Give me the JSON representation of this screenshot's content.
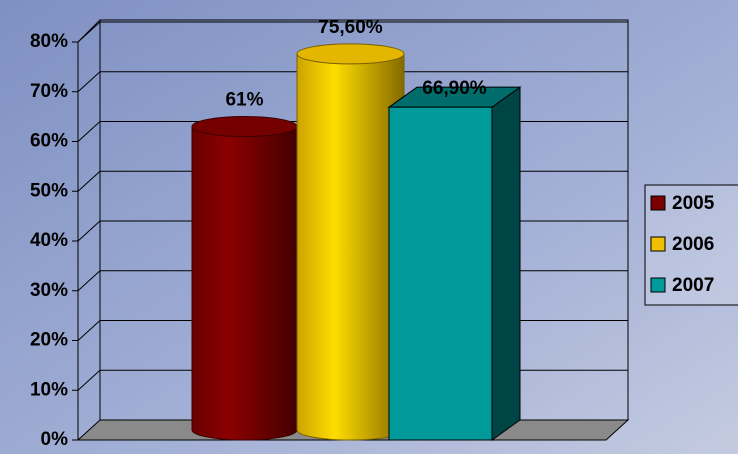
{
  "chart_data": {
    "type": "bar3d",
    "categories": [
      null
    ],
    "series": [
      {
        "name": "2005",
        "color": "#7a0000",
        "shape": "cylinder",
        "values": [
          61
        ],
        "value_labels": [
          "61%"
        ]
      },
      {
        "name": "2006",
        "color": "#f0c000",
        "shape": "cylinder",
        "values": [
          75.6
        ],
        "value_labels": [
          "75,60%"
        ]
      },
      {
        "name": "2007",
        "color": "#009a9a",
        "shape": "box",
        "values": [
          66.9
        ],
        "value_labels": [
          "66,90%"
        ]
      }
    ],
    "ylim": [
      0,
      80
    ],
    "yticks": [
      {
        "value": 0,
        "label": "0%"
      },
      {
        "value": 10,
        "label": "10%"
      },
      {
        "value": 20,
        "label": "20%"
      },
      {
        "value": 30,
        "label": "30%"
      },
      {
        "value": 40,
        "label": "40%"
      },
      {
        "value": 50,
        "label": "50%"
      },
      {
        "value": 60,
        "label": "60%"
      },
      {
        "value": 70,
        "label": "70%"
      },
      {
        "value": 80,
        "label": "80%"
      }
    ],
    "grid": true,
    "legend": "right"
  }
}
